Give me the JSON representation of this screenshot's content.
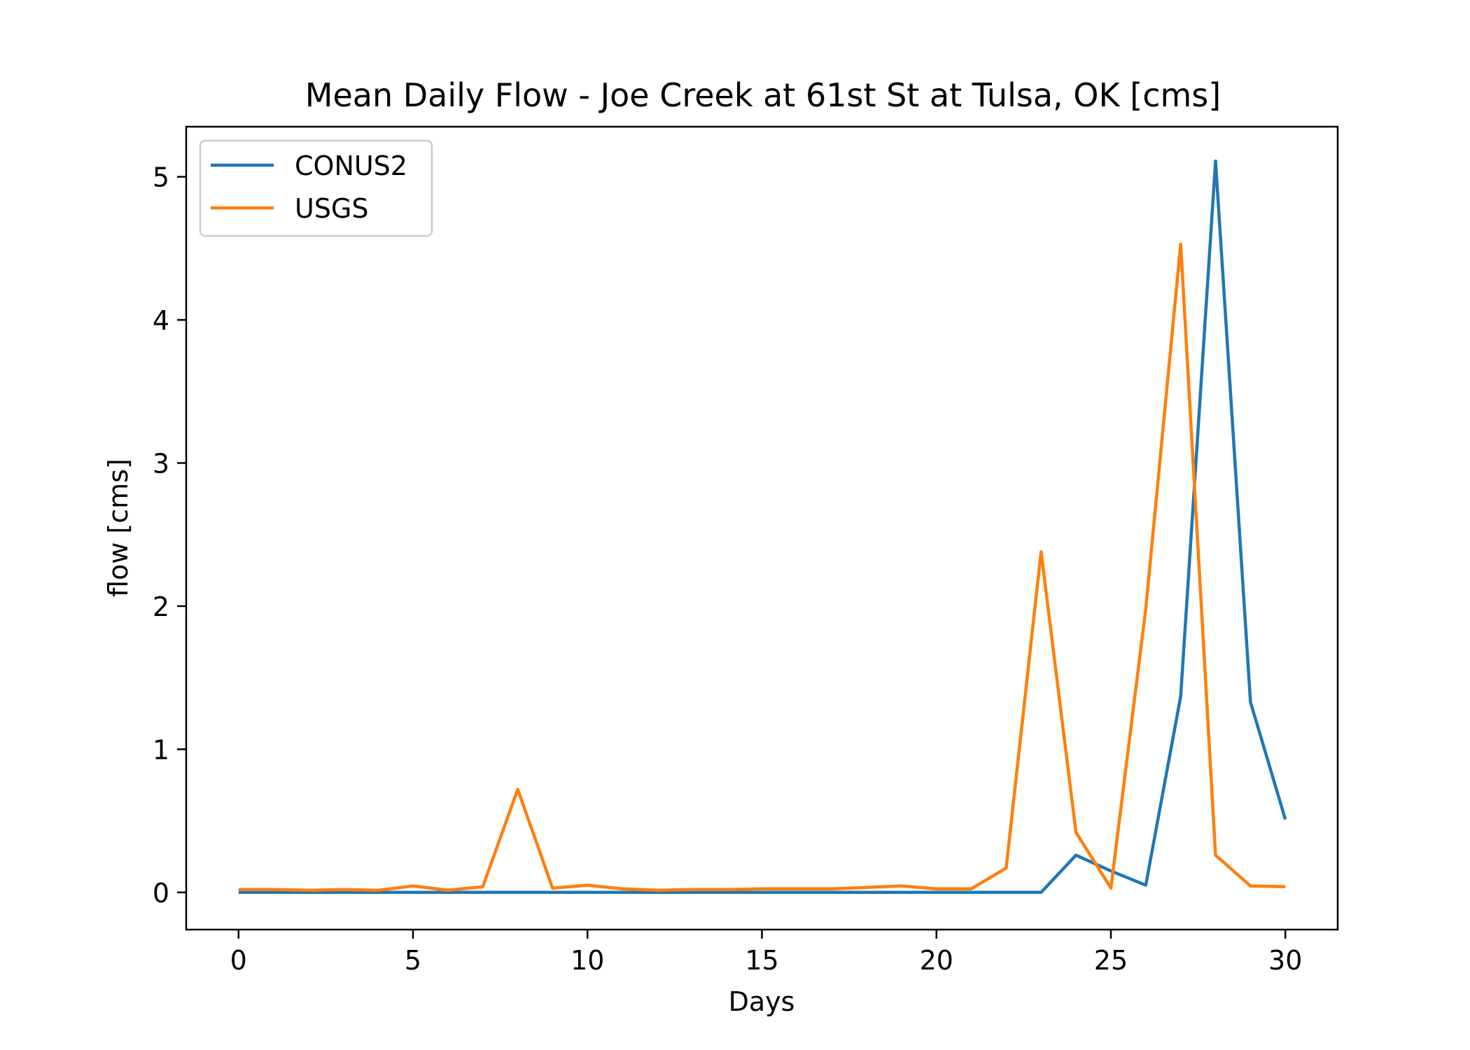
{
  "chart_data": {
    "type": "line",
    "title": "Mean Daily Flow - Joe Creek at 61st St at Tulsa, OK [cms]",
    "xlabel": "Days",
    "ylabel": "flow [cms]",
    "xlim": [
      -1.5,
      31.5
    ],
    "ylim": [
      -0.26,
      5.35
    ],
    "xticks": [
      0,
      5,
      10,
      15,
      20,
      25,
      30
    ],
    "xtick_labels": [
      "0",
      "5",
      "10",
      "15",
      "20",
      "25",
      "30"
    ],
    "yticks": [
      0,
      1,
      2,
      3,
      4,
      5
    ],
    "ytick_labels": [
      "0",
      "1",
      "2",
      "3",
      "4",
      "5"
    ],
    "grid": false,
    "legend_position": "upper-left",
    "x": [
      0,
      1,
      2,
      3,
      4,
      5,
      6,
      7,
      8,
      9,
      10,
      11,
      12,
      13,
      14,
      15,
      16,
      17,
      18,
      19,
      20,
      21,
      22,
      23,
      24,
      25,
      26,
      27,
      28,
      29,
      30
    ],
    "series": [
      {
        "name": "CONUS2",
        "color": "#1f77b4",
        "values": [
          0.0,
          0.0,
          0.0,
          0.0,
          0.0,
          0.0,
          0.0,
          0.0,
          0.0,
          0.0,
          0.0,
          0.0,
          0.0,
          0.0,
          0.0,
          0.0,
          0.0,
          0.0,
          0.0,
          0.0,
          0.0,
          0.0,
          0.0,
          0.0,
          0.26,
          0.15,
          0.05,
          1.37,
          5.11,
          1.33,
          0.51
        ]
      },
      {
        "name": "USGS",
        "color": "#ff7f0e",
        "values": [
          0.02,
          0.02,
          0.015,
          0.02,
          0.015,
          0.045,
          0.015,
          0.04,
          0.72,
          0.03,
          0.05,
          0.025,
          0.015,
          0.02,
          0.02,
          0.025,
          0.025,
          0.025,
          0.035,
          0.045,
          0.025,
          0.025,
          0.17,
          2.38,
          0.42,
          0.03,
          1.98,
          4.53,
          0.26,
          0.045,
          0.04
        ]
      }
    ]
  }
}
